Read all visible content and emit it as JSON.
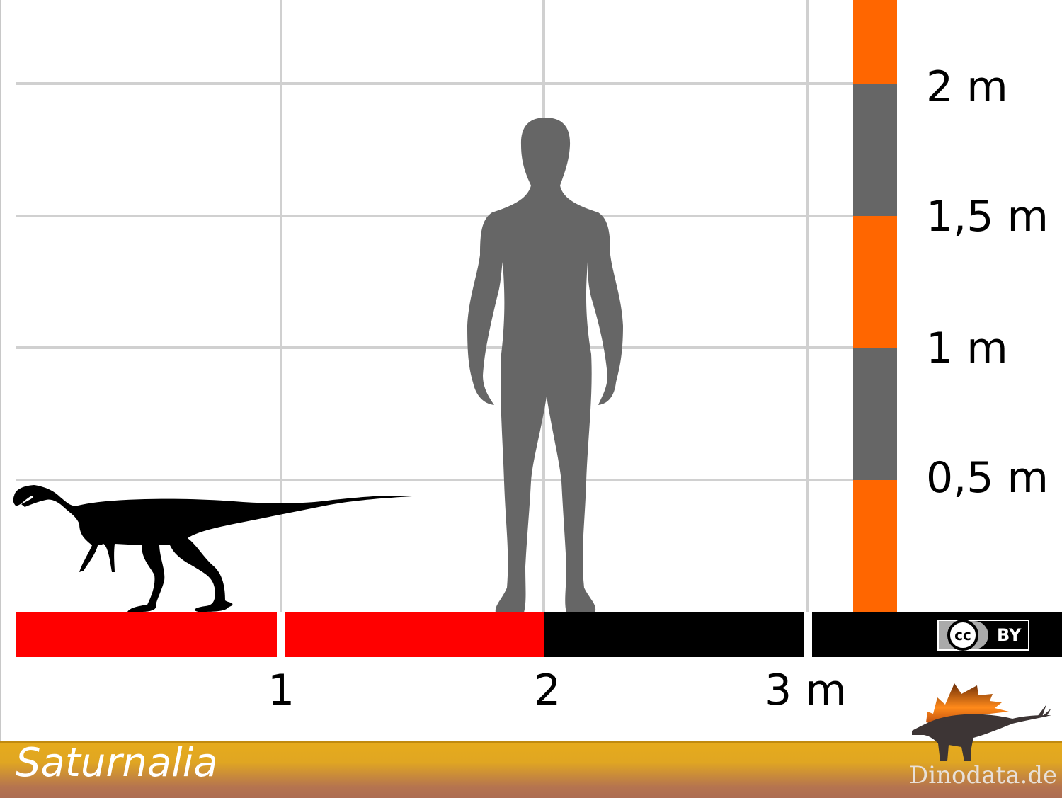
{
  "title": "Saturnalia",
  "brand": "Dinodata.de",
  "license": {
    "cc": "cc",
    "by": "BY"
  },
  "y_axis": {
    "labels": [
      "2 m",
      "1,5 m",
      "1 m",
      "0,5 m"
    ]
  },
  "x_axis": {
    "labels": [
      "1",
      "2",
      "3 m"
    ]
  },
  "colors": {
    "scale_red": "#ff0000",
    "scale_black": "#000000",
    "bar_orange": "#ff6600",
    "bar_gray": "#666666",
    "human": "#666666",
    "dinosaur": "#000000",
    "grid": "#d0d0d0",
    "banner_top": "#e6ab1c",
    "banner_bottom": "#ad6d52"
  },
  "icons": {
    "human": "human-silhouette",
    "dinosaur": "saturnalia-silhouette",
    "logo": "stegosaurus-logo",
    "license": "cc-by-icon"
  }
}
